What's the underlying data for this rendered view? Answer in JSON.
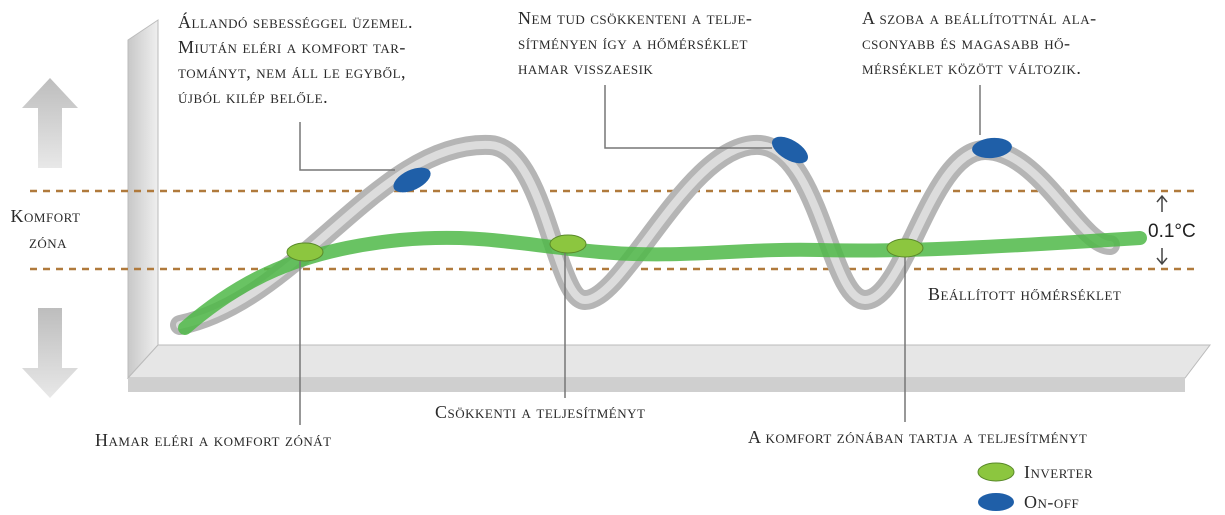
{
  "annotations": {
    "top_left": [
      "Állandó sebességgel üzemel.",
      "Miután eléri a komfort tar-",
      "tományt, nem áll le egyből,",
      "újból kilép belőle."
    ],
    "top_middle": [
      "Nem tud csökkenteni a telje-",
      "sítményen így a hőmérséklet",
      "hamar visszaesik"
    ],
    "top_right": [
      "A szoba a beállítottnál ala-",
      "csonyabb és magasabb hő-",
      "mérséklet között változik."
    ],
    "comfort_zone": [
      "Komfort",
      "zóna"
    ],
    "tolerance": "0.1°C",
    "set_temperature": "Beállított hőmérséklet",
    "reduces_power": "Csökkenti a teljesítményt",
    "reaches_zone": "Hamar eléri a komfort zónát",
    "keeps_zone": "A komfort zónában tartja  a teljesítményt"
  },
  "legend": [
    "Inverter",
    "On-off"
  ]
}
